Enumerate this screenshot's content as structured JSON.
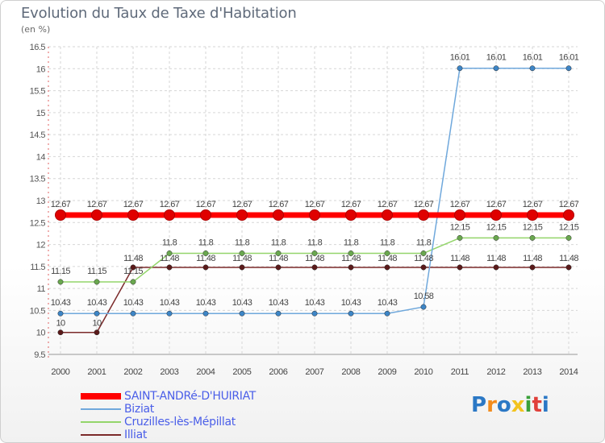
{
  "title": "Evolution du Taux de Taxe d'Habitation",
  "subtitle": "(en %)",
  "chart_data": {
    "type": "line",
    "x": [
      "2000",
      "2001",
      "2002",
      "2003",
      "2004",
      "2005",
      "2006",
      "2007",
      "2008",
      "2009",
      "2010",
      "2011",
      "2012",
      "2013",
      "2014"
    ],
    "ylim": [
      9.5,
      16.5
    ],
    "yticks": [
      "9.5",
      "10",
      "10.5",
      "11",
      "11.5",
      "12",
      "12.5",
      "13",
      "13.5",
      "14",
      "14.5",
      "15",
      "15.5",
      "16",
      "16.5"
    ],
    "grid": true,
    "legend_position": "bottom",
    "series": [
      {
        "name": "SAINT-ANDRé-D'HUIRIAT",
        "color": "#ff0000",
        "marker_color": "#e00000",
        "values": [
          12.67,
          12.67,
          12.67,
          12.67,
          12.67,
          12.67,
          12.67,
          12.67,
          12.67,
          12.67,
          12.67,
          12.67,
          12.67,
          12.67,
          12.67
        ],
        "labels": [
          "12.67",
          "12.67",
          "12.67",
          "12.67",
          "12.67",
          "12.67",
          "12.67",
          "12.67",
          "12.67",
          "12.67",
          "12.67",
          "12.67",
          "12.67",
          "12.67",
          "12.67"
        ]
      },
      {
        "name": "Biziat",
        "color": "#6fa8dc",
        "marker_color": "#3d85c6",
        "values": [
          10.43,
          10.43,
          10.43,
          10.43,
          10.43,
          10.43,
          10.43,
          10.43,
          10.43,
          10.43,
          10.58,
          16.01,
          16.01,
          16.01,
          16.01
        ],
        "labels": [
          "10.43",
          "10.43",
          "10.43",
          "10.43",
          "10.43",
          "10.43",
          "10.43",
          "10.43",
          "10.43",
          "10.43",
          "10.58",
          "16.01",
          "16.01",
          "16.01",
          "16.01"
        ]
      },
      {
        "name": "Cruzilles-lès-Mépillat",
        "color": "#93d56a",
        "marker_color": "#6aa84f",
        "values": [
          11.15,
          11.15,
          11.15,
          11.8,
          11.8,
          11.8,
          11.8,
          11.8,
          11.8,
          11.8,
          11.8,
          12.15,
          12.15,
          12.15,
          12.15
        ],
        "labels": [
          "11.15",
          "11.15",
          "11.15",
          "11.8",
          "11.8",
          "11.8",
          "11.8",
          "11.8",
          "11.8",
          "11.8",
          "11.8",
          "12.15",
          "12.15",
          "12.15",
          "12.15"
        ]
      },
      {
        "name": "Illiat",
        "color": "#7b2a2a",
        "marker_color": "#5b1a1a",
        "values": [
          10,
          10,
          11.48,
          11.48,
          11.48,
          11.48,
          11.48,
          11.48,
          11.48,
          11.48,
          11.48,
          11.48,
          11.48,
          11.48,
          11.48
        ],
        "labels": [
          "10",
          "10",
          "11.48",
          "11.48",
          "11.48",
          "11.48",
          "11.48",
          "11.48",
          "11.48",
          "11.48",
          "11.48",
          "11.48",
          "11.48",
          "11.48",
          "11.48"
        ]
      }
    ]
  },
  "legend": [
    {
      "label": "SAINT-ANDRé-D'HUIRIAT",
      "color": "#ff0000",
      "thickness": 8
    },
    {
      "label": "Biziat",
      "color": "#6fa8dc",
      "thickness": 2
    },
    {
      "label": "Cruzilles-lès-Mépillat",
      "color": "#93d56a",
      "thickness": 2
    },
    {
      "label": "Illiat",
      "color": "#7b2a2a",
      "thickness": 2
    }
  ],
  "logo": {
    "letters": [
      "P",
      "r",
      "o",
      "x",
      "i",
      "t",
      "i"
    ],
    "colors": [
      "#2b78c5",
      "#f28c1e",
      "#2b78c5",
      "#f2c31e",
      "#3aa03a",
      "#e0403a",
      "#2b78c5"
    ]
  }
}
